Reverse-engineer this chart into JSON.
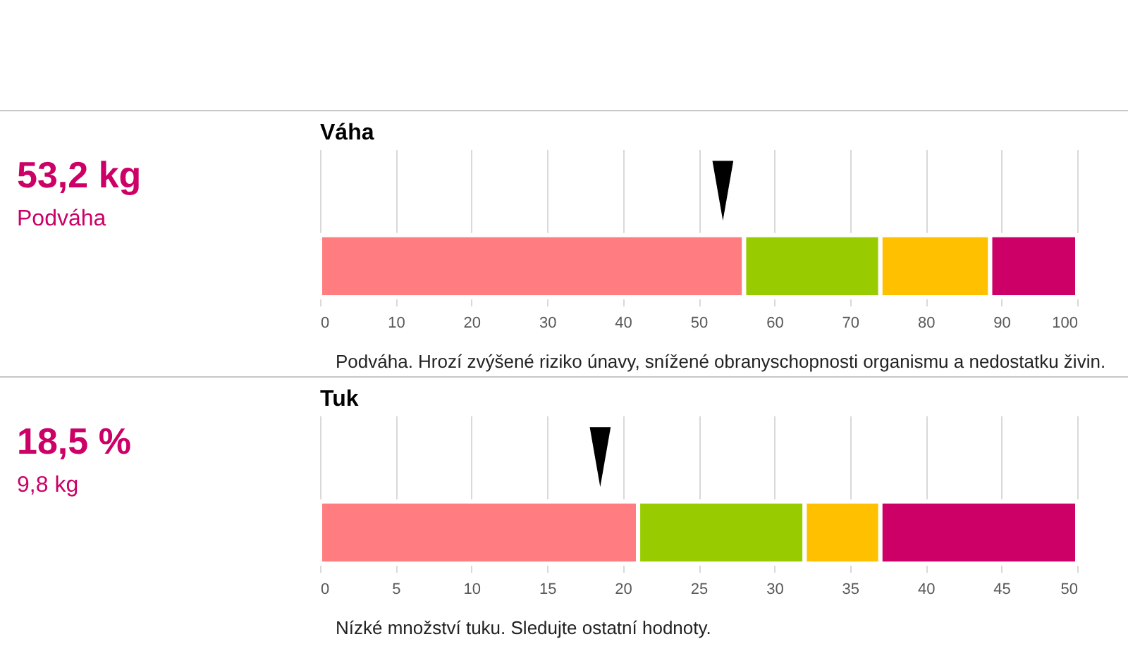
{
  "chart_data": [
    {
      "type": "bar",
      "orientation": "horizontal",
      "stacked": true,
      "categories": [
        null
      ],
      "title": "Váha",
      "annotations": [
        "53,2 kg",
        "Podváha",
        "Podváha. Hrozí zvýšené riziko únavy, snížené obranyschopnosti organismu a nedostatku živin."
      ],
      "marker": "triangle",
      "grid": "x",
      "xlim": [
        0,
        100
      ],
      "xticks": [
        0,
        10,
        20,
        30,
        40,
        50,
        60,
        70,
        80,
        90,
        100
      ],
      "series": [
        {
          "color": "#ff7c80",
          "values": [
            56
          ]
        },
        {
          "color": "#99cc00",
          "values": [
            18
          ]
        },
        {
          "color": "#ffc000",
          "values": [
            14.5
          ]
        },
        {
          "color": "#cc0066",
          "values": [
            11.5
          ]
        },
        {
          "type": "scatter",
          "color": "#000000",
          "values": [
            53.2
          ]
        }
      ]
    },
    {
      "type": "bar",
      "orientation": "horizontal",
      "stacked": true,
      "categories": [
        null
      ],
      "title": "Tuk",
      "annotations": [
        "18,5 %",
        "9,8 kg",
        "Nízké množství tuku. Sledujte ostatní hodnoty."
      ],
      "marker": "triangle",
      "grid": "x",
      "xlim": [
        0,
        50
      ],
      "xticks": [
        0,
        5,
        10,
        15,
        20,
        25,
        30,
        35,
        40,
        45,
        50
      ],
      "series": [
        {
          "color": "#ff7c80",
          "values": [
            21
          ]
        },
        {
          "color": "#99cc00",
          "values": [
            11
          ]
        },
        {
          "color": "#ffc000",
          "values": [
            5
          ]
        },
        {
          "color": "#cc0066",
          "values": [
            13
          ]
        },
        {
          "type": "scatter",
          "color": "#000000",
          "values": [
            18.5
          ]
        }
      ]
    }
  ]
}
